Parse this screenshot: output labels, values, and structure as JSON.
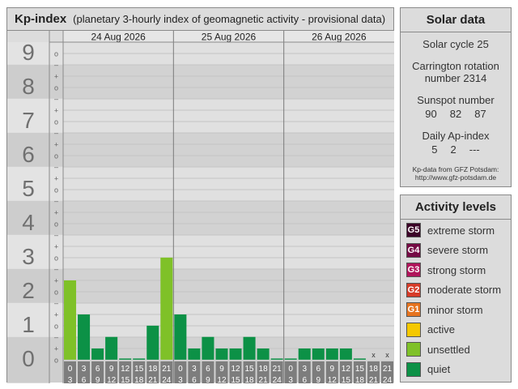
{
  "header": {
    "title": "Kp-index",
    "subtitle": "(planetary 3-hourly index of geomagnetic activity - provisional data)"
  },
  "chart_data": {
    "type": "bar",
    "days": [
      "24 Aug 2026",
      "25 Aug 2026",
      "26 Aug 2026"
    ],
    "interval_starts": [
      "0",
      "3",
      "6",
      "9",
      "12",
      "15",
      "18",
      "21"
    ],
    "interval_ends": [
      "3",
      "6",
      "9",
      "12",
      "15",
      "18",
      "21",
      "24"
    ],
    "y_major_labels": [
      "0",
      "1",
      "2",
      "3",
      "4",
      "5",
      "6",
      "7",
      "8",
      "9"
    ],
    "y_minor_labels": [
      "o",
      "+",
      "–",
      "o"
    ],
    "ylim": [
      0,
      9.33
    ],
    "values": [
      2.33,
      1.33,
      0.33,
      0.67,
      0,
      0,
      1,
      3,
      1.33,
      0.33,
      0.67,
      0.33,
      0.33,
      0.67,
      0.33,
      0,
      0,
      0.33,
      0.33,
      0.33,
      0.33,
      0,
      null,
      null
    ],
    "missing_marker": "x",
    "colors": {
      "quiet": "#0c9146",
      "unsettled": "#7fc128",
      "active": "#f5c800",
      "minor": "#e6731f",
      "moderate": "#d63b28",
      "strong": "#b0145a",
      "severe": "#750a44",
      "extreme": "#3c0327"
    }
  },
  "solar": {
    "title": "Solar data",
    "cycle": "Solar cycle 25",
    "carrington_1": "Carrington rotation",
    "carrington_2": "number 2314",
    "sunspot_label": "Sunspot number",
    "sunspot_values": [
      "90",
      "82",
      "87"
    ],
    "ap_label": "Daily Ap-index",
    "ap_values": [
      "5",
      "2",
      "---"
    ],
    "credit_1": "Kp-data from  GFZ Potsdam:",
    "credit_2": "http://www.gfz-potsdam.de"
  },
  "activity": {
    "title": "Activity levels",
    "items": [
      {
        "code": "G5",
        "label": "extreme storm",
        "color": "#3c0327"
      },
      {
        "code": "G4",
        "label": "severe storm",
        "color": "#750a44"
      },
      {
        "code": "G3",
        "label": "strong storm",
        "color": "#b0145a"
      },
      {
        "code": "G2",
        "label": "moderate storm",
        "color": "#d63b28"
      },
      {
        "code": "G1",
        "label": "minor storm",
        "color": "#e6731f"
      },
      {
        "code": "",
        "label": "active",
        "color": "#f5c800"
      },
      {
        "code": "",
        "label": "unsettled",
        "color": "#7fc128"
      },
      {
        "code": "",
        "label": "quiet",
        "color": "#0c9146"
      }
    ]
  }
}
